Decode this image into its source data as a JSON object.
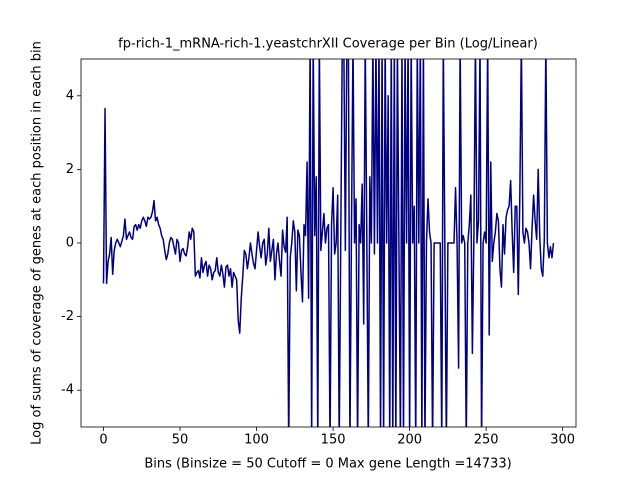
{
  "chart_data": {
    "type": "line",
    "title": "fp-rich-1_mRNA-rich-1.yeastchrXII Coverage per Bin (Log/Linear)",
    "x_label": "Bins  (Binsize = 50 Cutoff = 0 Max gene Length =14733)",
    "y_label": "Log of sums of coverage of genes at each position in each bin",
    "xlim": [
      -14.7,
      308.7
    ],
    "ylim": [
      -5,
      5
    ],
    "xticks": [
      0,
      50,
      100,
      150,
      200,
      250,
      300
    ],
    "yticks": [
      -4,
      -2,
      0,
      2,
      4
    ],
    "series": [
      {
        "color": "#000080",
        "x": [
          0,
          1,
          2,
          3,
          4,
          5,
          6,
          7,
          8,
          9,
          10,
          11,
          12,
          13,
          14,
          15,
          16,
          17,
          18,
          19,
          20,
          21,
          22,
          23,
          24,
          25,
          26,
          27,
          28,
          29,
          30,
          31,
          32,
          33,
          34,
          35,
          36,
          37,
          38,
          39,
          40,
          41,
          42,
          43,
          44,
          45,
          46,
          47,
          48,
          49,
          50,
          51,
          52,
          53,
          54,
          55,
          56,
          57,
          58,
          59,
          60,
          61,
          62,
          63,
          64,
          65,
          66,
          67,
          68,
          69,
          70,
          71,
          72,
          73,
          74,
          75,
          76,
          77,
          78,
          79,
          80,
          81,
          82,
          83,
          84,
          85,
          86,
          87,
          88,
          89,
          90,
          91,
          92,
          93,
          94,
          95,
          96,
          97,
          98,
          99,
          100,
          101,
          102,
          103,
          104,
          105,
          106,
          107,
          108,
          109,
          110,
          111,
          112,
          113,
          114,
          115,
          116,
          117,
          118,
          119,
          120,
          121,
          122,
          123,
          124,
          125,
          126,
          127,
          128,
          129,
          130,
          131,
          132,
          133,
          134,
          135,
          136,
          137,
          138,
          139,
          140,
          141,
          142,
          143,
          144,
          145,
          146,
          147,
          148,
          149,
          150,
          151,
          152,
          153,
          154,
          155,
          156,
          157,
          158,
          159,
          160,
          161,
          162,
          163,
          164,
          165,
          166,
          167,
          168,
          169,
          170,
          171,
          172,
          173,
          174,
          175,
          176,
          177,
          178,
          179,
          180,
          181,
          182,
          183,
          184,
          185,
          186,
          187,
          188,
          189,
          190,
          191,
          192,
          193,
          194,
          195,
          196,
          197,
          198,
          199,
          200,
          201,
          202,
          203,
          204,
          205,
          206,
          207,
          208,
          209,
          210,
          211,
          212,
          213,
          214,
          215,
          216,
          217,
          218,
          219,
          220,
          221,
          222,
          223,
          224,
          225,
          226,
          227,
          228,
          229,
          230,
          231,
          232,
          233,
          234,
          235,
          236,
          237,
          238,
          239,
          240,
          241,
          242,
          243,
          244,
          245,
          246,
          247,
          248,
          249,
          250,
          251,
          252,
          253,
          254,
          255,
          256,
          257,
          258,
          259,
          260,
          261,
          262,
          263,
          264,
          265,
          266,
          267,
          268,
          269,
          270,
          271,
          272,
          273,
          274,
          275,
          276,
          277,
          278,
          279,
          280,
          281,
          282,
          283,
          284,
          285,
          286,
          287,
          288,
          289,
          290,
          291,
          292,
          293,
          294
        ],
        "values": [
          -1.1,
          3.65,
          -1.1,
          -0.5,
          -0.3,
          0.15,
          -0.85,
          -0.2,
          0.0,
          0.1,
          0.0,
          -0.1,
          0.05,
          0.2,
          0.65,
          0.1,
          0.2,
          0.3,
          0.15,
          0.1,
          0.45,
          0.5,
          0.35,
          0.5,
          0.4,
          0.6,
          0.7,
          0.6,
          0.45,
          0.7,
          0.65,
          0.7,
          0.85,
          1.15,
          0.6,
          0.7,
          0.5,
          0.4,
          0.2,
          0.1,
          -0.2,
          -0.45,
          -0.3,
          0.0,
          0.15,
          0.1,
          -0.1,
          -0.3,
          0.1,
          0.0,
          -0.5,
          -0.2,
          -0.15,
          -0.3,
          -0.35,
          -0.1,
          0.3,
          0.1,
          0.4,
          0.3,
          -0.9,
          -0.8,
          -0.75,
          -0.95,
          -0.4,
          -0.8,
          -0.6,
          -0.5,
          -0.9,
          -0.6,
          -0.7,
          -1.0,
          -0.8,
          -0.75,
          -0.4,
          -0.8,
          -0.9,
          -0.6,
          -0.85,
          -1.2,
          -0.65,
          -0.6,
          -0.9,
          -0.7,
          -1.2,
          -0.8,
          -0.9,
          -1.0,
          -2.1,
          -2.45,
          -1.5,
          -0.9,
          -0.2,
          -0.3,
          -0.7,
          -0.4,
          0.0,
          -0.3,
          -0.55,
          -0.7,
          -0.2,
          0.3,
          -0.1,
          -0.4,
          0.0,
          0.1,
          -0.6,
          -0.3,
          0.4,
          -0.5,
          -0.2,
          0.1,
          -1.0,
          -0.3,
          0.0,
          -0.5,
          -0.9,
          0.35,
          -0.1,
          -0.25,
          0.7,
          -5.5,
          -0.4,
          0.0,
          0.6,
          0.3,
          -1.3,
          0.35,
          0.2,
          -0.8,
          -1.6,
          0.5,
          0.2,
          2.2,
          -1.5,
          5.5,
          -5.5,
          5.5,
          0.2,
          1.8,
          -5.5,
          5.5,
          -0.2,
          0.3,
          0.8,
          0.0,
          0.4,
          0.5,
          -5.5,
          0.5,
          1.5,
          -0.3,
          0.0,
          1.3,
          -5.5,
          0.0,
          5.5,
          5.5,
          -0.2,
          5.5,
          5.5,
          -5.5,
          0.3,
          5.5,
          0.0,
          1.2,
          -5.5,
          0.5,
          0.0,
          1.6,
          -2.2,
          5.5,
          0.3,
          -5.5,
          1.8,
          0.0,
          5.5,
          -0.3,
          5.5,
          0.0,
          5.5,
          -5.5,
          5.5,
          -5.5,
          5.5,
          0.0,
          4.0,
          -5.5,
          5.5,
          -5.5,
          5.5,
          -5.5,
          5.5,
          0.0,
          -5.5,
          5.5,
          -5.5,
          5.5,
          0.0,
          5.5,
          -5.5,
          5.5,
          0.0,
          1.0,
          -5.5,
          5.5,
          0.0,
          5.5,
          -5.5,
          5.5,
          -5.5,
          0.0,
          1.2,
          0.3,
          0.0,
          -5.5,
          0.0,
          0.0,
          0.0,
          0.0,
          0.0,
          -5.5,
          5.5,
          0.0,
          -5.5,
          0.0,
          0.0,
          0.0,
          0.0,
          0.0,
          1.5,
          0.0,
          -3.4,
          5.5,
          0.0,
          0.2,
          0.0,
          -5.5,
          0.0,
          0.5,
          1.3,
          -3.0,
          0.2,
          5.5,
          0.0,
          0.6,
          5.5,
          -5.5,
          0.0,
          0.3,
          0.0,
          5.5,
          -2.5,
          2.2,
          -0.5,
          0.0,
          0.3,
          0.8,
          0.6,
          -0.7,
          -1.2,
          0.5,
          -0.3,
          0.7,
          0.9,
          1.0,
          1.7,
          0.3,
          -0.8,
          1.0,
          1.0,
          -1.4,
          1.3,
          5.5,
          0.3,
          0.0,
          0.4,
          0.3,
          0.0,
          -0.7,
          0.4,
          1.3,
          0.6,
          0.1,
          2.0,
          0.2,
          -0.7,
          -0.9,
          0.1,
          5.5,
          0.0,
          -0.4,
          -0.1,
          -0.4,
          0.0
        ]
      }
    ]
  }
}
